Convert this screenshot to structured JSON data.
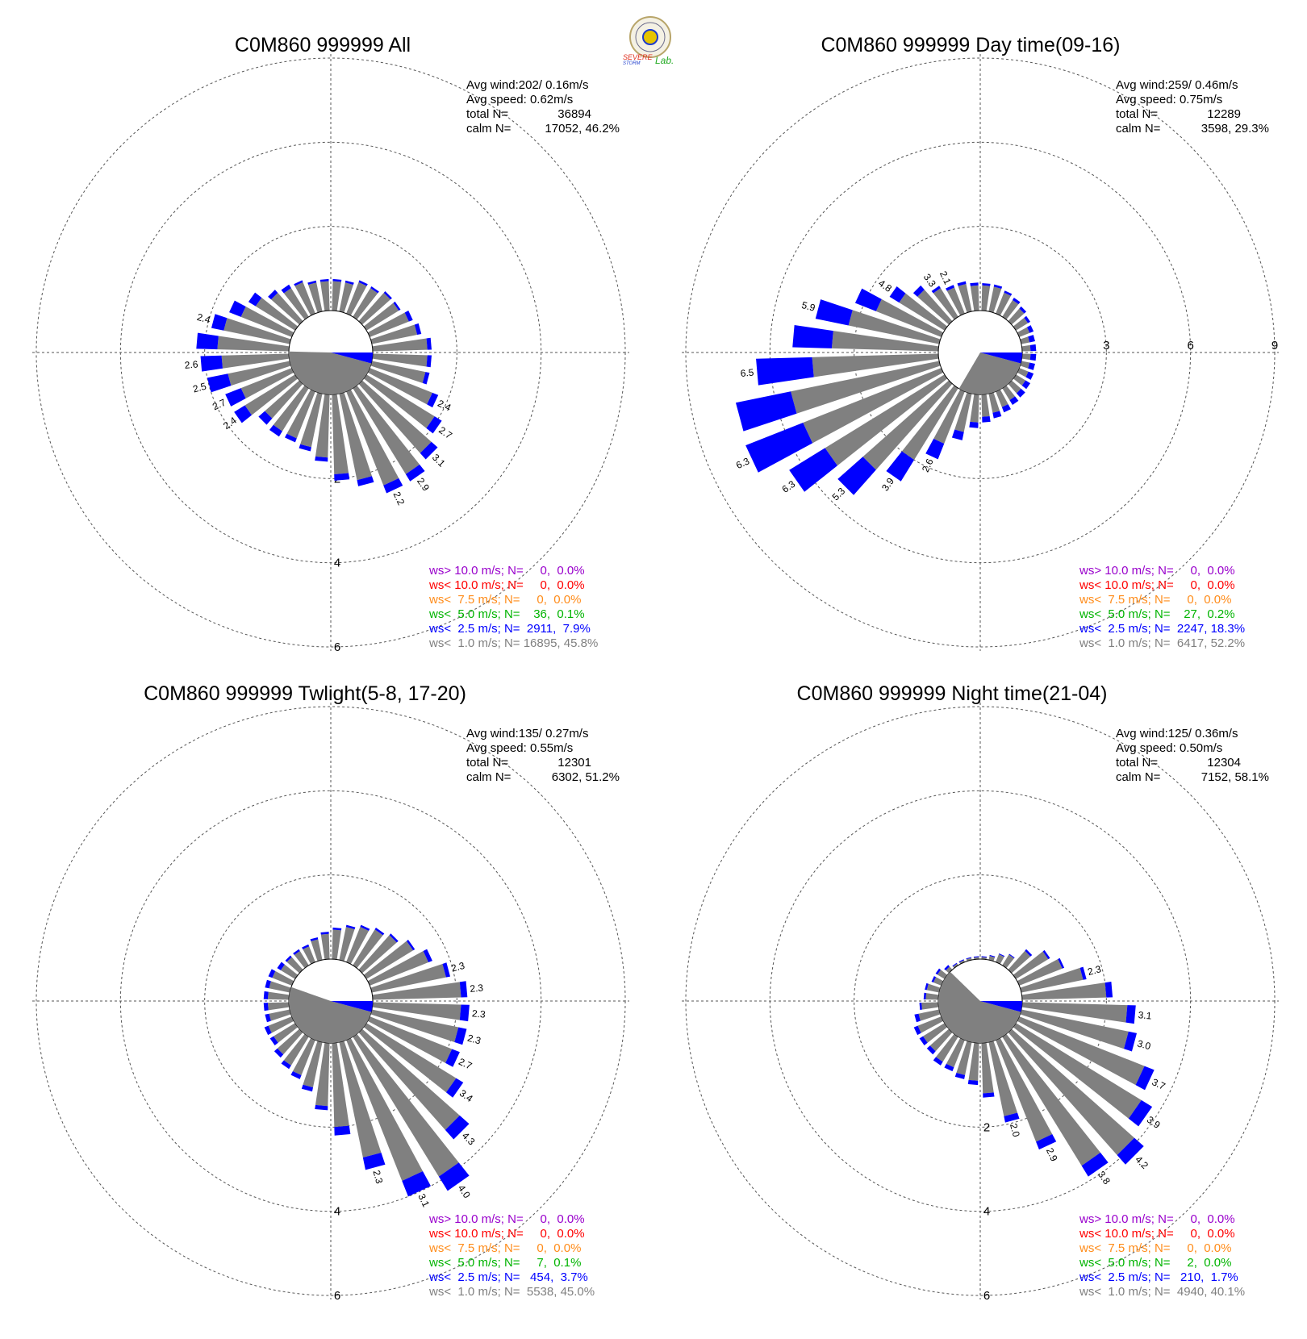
{
  "logo": {
    "text_severe": "SEVERE",
    "text_storm": "STORM",
    "text_lab": "Lab.",
    "colors": {
      "severe": "#e03020",
      "storm": "#1e3ccc",
      "lab": "#22aa22",
      "seal": "#b8a56a"
    }
  },
  "colors": {
    "calm": "#808080",
    "band_lt1": "#808080",
    "band_lt2_5": "#0000ff",
    "band_lt5": "#00b400",
    "band_lt7_5": "#ff8c1a",
    "band_lt10": "#ff0000",
    "band_gt10": "#9900cc",
    "grid": "#555555"
  },
  "chart_data": [
    {
      "type": "polar-bar",
      "title": "C0M860 999999 All",
      "stats": {
        "avg_wind": "Avg wind:202/ 0.16m/s",
        "avg_speed": "Avg speed: 0.62m/s",
        "total_label": "total N=",
        "total_value": "36894",
        "calm_label": "calm N=",
        "calm_value": "17052,  46.2%"
      },
      "calm_fraction": 0.462,
      "rings": [
        2,
        4,
        6
      ],
      "ring_label_direction": "S",
      "directions_deg": [
        5,
        15,
        25,
        35,
        45,
        55,
        65,
        75,
        85,
        95,
        105,
        115,
        125,
        135,
        145,
        155,
        165,
        175,
        185,
        195,
        205,
        215,
        225,
        235,
        245,
        255,
        265,
        275,
        285,
        295,
        305,
        315,
        325,
        335,
        345,
        355
      ],
      "gray_values": [
        0.7,
        0.7,
        0.8,
        0.8,
        0.9,
        0.9,
        1.0,
        1.1,
        1.3,
        1.3,
        1.3,
        1.6,
        1.9,
        2.2,
        2.4,
        2.4,
        2.1,
        1.9,
        1.5,
        1.3,
        1.2,
        1.2,
        1.1,
        1.4,
        1.3,
        1.5,
        1.6,
        1.7,
        1.6,
        1.3,
        1.1,
        0.9,
        0.8,
        0.8,
        0.7,
        0.7
      ],
      "blue_values": [
        0.05,
        0.05,
        0.05,
        0.05,
        0.05,
        0.05,
        0.1,
        0.1,
        0.1,
        0.1,
        0.1,
        0.15,
        0.2,
        0.2,
        0.2,
        0.2,
        0.15,
        0.15,
        0.1,
        0.1,
        0.1,
        0.15,
        0.2,
        0.3,
        0.4,
        0.5,
        0.5,
        0.5,
        0.3,
        0.3,
        0.2,
        0.1,
        0.1,
        0.05,
        0.05,
        0.05
      ],
      "labels": [
        {
          "dir": 115,
          "text": "2.4"
        },
        {
          "dir": 125,
          "text": "2.7"
        },
        {
          "dir": 135,
          "text": "3.1"
        },
        {
          "dir": 145,
          "text": "2.9"
        },
        {
          "dir": 155,
          "text": "2.2"
        },
        {
          "dir": 235,
          "text": "2.4"
        },
        {
          "dir": 245,
          "text": "2.7"
        },
        {
          "dir": 255,
          "text": "2.5"
        },
        {
          "dir": 265,
          "text": "2.6"
        },
        {
          "dir": 285,
          "text": "2.4"
        }
      ],
      "legend": [
        {
          "text": "ws> 10.0 m/s; N=     0,  0.0%",
          "band": "band_gt10"
        },
        {
          "text": "ws< 10.0 m/s; N=     0,  0.0%",
          "band": "band_lt10"
        },
        {
          "text": "ws<  7.5 m/s; N=     0,  0.0%",
          "band": "band_lt7_5"
        },
        {
          "text": "ws<  5.0 m/s; N=    36,  0.1%",
          "band": "band_lt5"
        },
        {
          "text": "ws<  2.5 m/s; N=  2911,  7.9%",
          "band": "band_lt2_5"
        },
        {
          "text": "ws<  1.0 m/s; N= 16895, 45.8%",
          "band": "band_lt1"
        }
      ]
    },
    {
      "type": "polar-bar",
      "title": "C0M860 999999 Day time(09-16)",
      "stats": {
        "avg_wind": "Avg wind:259/ 0.46m/s",
        "avg_speed": "Avg speed: 0.75m/s",
        "total_label": "total N=",
        "total_value": "12289",
        "calm_label": "calm N=",
        "calm_value": "3598,  29.3%"
      },
      "calm_fraction": 0.293,
      "rings": [
        3,
        6,
        9
      ],
      "ring_label_direction": "E",
      "directions_deg": [
        5,
        15,
        25,
        35,
        45,
        55,
        65,
        75,
        85,
        95,
        105,
        115,
        125,
        135,
        145,
        155,
        165,
        175,
        185,
        195,
        205,
        215,
        225,
        235,
        245,
        255,
        265,
        275,
        285,
        295,
        305,
        315,
        325,
        335,
        345,
        355
      ],
      "gray_values": [
        0.9,
        0.9,
        0.8,
        0.7,
        0.6,
        0.5,
        0.4,
        0.3,
        0.3,
        0.3,
        0.3,
        0.35,
        0.4,
        0.45,
        0.5,
        0.6,
        0.7,
        0.8,
        1.0,
        1.4,
        2.0,
        3.0,
        4.1,
        5.0,
        5.3,
        5.4,
        4.5,
        3.8,
        3.3,
        2.5,
        1.9,
        1.5,
        1.2,
        1.0,
        1.0,
        0.9
      ],
      "blue_values": [
        0.08,
        0.08,
        0.08,
        0.1,
        0.1,
        0.1,
        0.15,
        0.2,
        0.2,
        0.2,
        0.2,
        0.2,
        0.2,
        0.2,
        0.2,
        0.2,
        0.2,
        0.2,
        0.2,
        0.3,
        0.6,
        0.9,
        1.2,
        1.5,
        2.2,
        2.0,
        2.0,
        1.4,
        1.2,
        0.8,
        0.4,
        0.2,
        0.1,
        0.1,
        0.1,
        0.1
      ],
      "labels": [
        {
          "dir": 205,
          "text": "2.6"
        },
        {
          "dir": 215,
          "text": "3.9"
        },
        {
          "dir": 225,
          "text": "5.3"
        },
        {
          "dir": 235,
          "text": "6.3"
        },
        {
          "dir": 245,
          "text": "6.3"
        },
        {
          "dir": 265,
          "text": "6.5"
        },
        {
          "dir": 285,
          "text": "5.9"
        },
        {
          "dir": 305,
          "text": "4.8"
        },
        {
          "dir": 325,
          "text": "3.3"
        },
        {
          "dir": 335,
          "text": "2.1"
        }
      ],
      "legend": [
        {
          "text": "ws> 10.0 m/s; N=     0,  0.0%",
          "band": "band_gt10"
        },
        {
          "text": "ws< 10.0 m/s; N=     0,  0.0%",
          "band": "band_lt10"
        },
        {
          "text": "ws<  7.5 m/s; N=     0,  0.0%",
          "band": "band_lt7_5"
        },
        {
          "text": "ws<  5.0 m/s; N=    27,  0.2%",
          "band": "band_lt5"
        },
        {
          "text": "ws<  2.5 m/s; N=  2247, 18.3%",
          "band": "band_lt2_5"
        },
        {
          "text": "ws<  1.0 m/s; N=  6417, 52.2%",
          "band": "band_lt1"
        }
      ]
    },
    {
      "type": "polar-bar",
      "title": "C0M860 999999 Twlight(5-8, 17-20)",
      "stats": {
        "avg_wind": "Avg wind:135/ 0.27m/s",
        "avg_speed": "Avg speed: 0.55m/s",
        "total_label": "total N=",
        "total_value": "12301",
        "calm_label": "calm N=",
        "calm_value": "6302,  51.2%"
      },
      "calm_fraction": 0.512,
      "rings": [
        2,
        4,
        6
      ],
      "ring_label_direction": "S",
      "directions_deg": [
        5,
        15,
        25,
        35,
        45,
        55,
        65,
        75,
        85,
        95,
        105,
        115,
        125,
        135,
        145,
        155,
        165,
        175,
        185,
        195,
        205,
        215,
        225,
        235,
        245,
        255,
        265,
        275,
        285,
        295,
        305,
        315,
        325,
        335,
        345,
        355
      ],
      "gray_values": [
        0.7,
        0.8,
        0.9,
        1.0,
        1.1,
        1.3,
        1.5,
        1.8,
        2.1,
        2.1,
        2.1,
        2.1,
        2.5,
        3.1,
        3.9,
        3.6,
        2.8,
        2.0,
        1.5,
        1.1,
        0.9,
        0.8,
        0.7,
        0.6,
        0.6,
        0.5,
        0.5,
        0.5,
        0.5,
        0.5,
        0.4,
        0.4,
        0.4,
        0.4,
        0.5,
        0.6
      ],
      "blue_values": [
        0.05,
        0.05,
        0.05,
        0.05,
        0.05,
        0.05,
        0.1,
        0.1,
        0.15,
        0.2,
        0.2,
        0.2,
        0.2,
        0.3,
        0.4,
        0.4,
        0.3,
        0.2,
        0.1,
        0.1,
        0.1,
        0.1,
        0.1,
        0.1,
        0.1,
        0.1,
        0.1,
        0.1,
        0.1,
        0.1,
        0.1,
        0.05,
        0.05,
        0.05,
        0.05,
        0.05
      ],
      "labels": [
        {
          "dir": 75,
          "text": "2.3"
        },
        {
          "dir": 85,
          "text": "2.3"
        },
        {
          "dir": 95,
          "text": "2.3"
        },
        {
          "dir": 105,
          "text": "2.3"
        },
        {
          "dir": 115,
          "text": "2.7"
        },
        {
          "dir": 125,
          "text": "3.4"
        },
        {
          "dir": 135,
          "text": "4.3"
        },
        {
          "dir": 145,
          "text": "4.0"
        },
        {
          "dir": 155,
          "text": "3.1"
        },
        {
          "dir": 165,
          "text": "2.3"
        }
      ],
      "legend": [
        {
          "text": "ws> 10.0 m/s; N=     0,  0.0%",
          "band": "band_gt10"
        },
        {
          "text": "ws< 10.0 m/s; N=     0,  0.0%",
          "band": "band_lt10"
        },
        {
          "text": "ws<  7.5 m/s; N=     0,  0.0%",
          "band": "band_lt7_5"
        },
        {
          "text": "ws<  5.0 m/s; N=     7,  0.1%",
          "band": "band_lt5"
        },
        {
          "text": "ws<  2.5 m/s; N=   454,  3.7%",
          "band": "band_lt2_5"
        },
        {
          "text": "ws<  1.0 m/s; N=  5538, 45.0%",
          "band": "band_lt1"
        }
      ]
    },
    {
      "type": "polar-bar",
      "title": "C0M860 999999 Night time(21-04)",
      "stats": {
        "avg_wind": "Avg wind:125/ 0.36m/s",
        "avg_speed": "Avg speed: 0.50m/s",
        "total_label": "total N=",
        "total_value": "12304",
        "calm_label": "calm N=",
        "calm_value": "7152,  58.1%"
      },
      "calm_fraction": 0.581,
      "rings": [
        2,
        4,
        6
      ],
      "ring_label_direction": "S",
      "directions_deg": [
        5,
        15,
        25,
        35,
        45,
        55,
        65,
        75,
        85,
        95,
        105,
        115,
        125,
        135,
        145,
        155,
        165,
        175,
        185,
        195,
        205,
        215,
        225,
        235,
        245,
        255,
        265,
        275,
        285,
        295,
        305,
        315,
        325,
        335,
        345,
        355
      ],
      "gray_values": [
        0.05,
        0.1,
        0.2,
        0.3,
        0.6,
        0.9,
        1.1,
        1.5,
        2.0,
        2.5,
        2.6,
        3.2,
        3.5,
        3.9,
        3.6,
        2.6,
        1.8,
        1.2,
        0.9,
        0.8,
        0.7,
        0.7,
        0.6,
        0.6,
        0.6,
        0.5,
        0.4,
        0.3,
        0.3,
        0.2,
        0.2,
        0.1,
        0.05,
        0.05,
        0.05,
        0.05
      ],
      "blue_values": [
        0.02,
        0.02,
        0.02,
        0.02,
        0.05,
        0.05,
        0.05,
        0.08,
        0.15,
        0.2,
        0.2,
        0.25,
        0.3,
        0.3,
        0.3,
        0.2,
        0.15,
        0.1,
        0.1,
        0.1,
        0.1,
        0.1,
        0.1,
        0.1,
        0.1,
        0.1,
        0.05,
        0.05,
        0.05,
        0.05,
        0.05,
        0.05,
        0.02,
        0.02,
        0.02,
        0.02
      ],
      "labels": [
        {
          "dir": 75,
          "text": "2.3"
        },
        {
          "dir": 95,
          "text": "3.1"
        },
        {
          "dir": 105,
          "text": "3.0"
        },
        {
          "dir": 115,
          "text": "3.7"
        },
        {
          "dir": 125,
          "text": "3.9"
        },
        {
          "dir": 135,
          "text": "4.2"
        },
        {
          "dir": 145,
          "text": "3.8"
        },
        {
          "dir": 155,
          "text": "2.9"
        },
        {
          "dir": 165,
          "text": "2.0"
        }
      ],
      "legend": [
        {
          "text": "ws> 10.0 m/s; N=     0,  0.0%",
          "band": "band_gt10"
        },
        {
          "text": "ws< 10.0 m/s; N=     0,  0.0%",
          "band": "band_lt10"
        },
        {
          "text": "ws<  7.5 m/s; N=     0,  0.0%",
          "band": "band_lt7_5"
        },
        {
          "text": "ws<  5.0 m/s; N=     2,  0.0%",
          "band": "band_lt5"
        },
        {
          "text": "ws<  2.5 m/s; N=   210,  1.7%",
          "band": "band_lt2_5"
        },
        {
          "text": "ws<  1.0 m/s; N=  4940, 40.1%",
          "band": "band_lt1"
        }
      ]
    }
  ]
}
